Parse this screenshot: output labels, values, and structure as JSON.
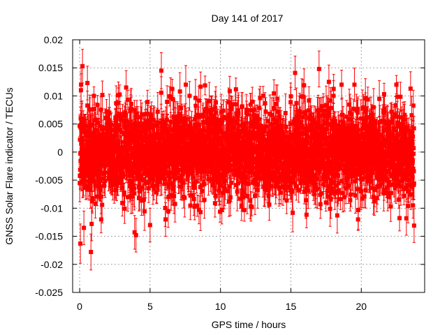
{
  "chart_data": {
    "type": "scatter",
    "title": "Day 141 of 2017",
    "xlabel": "GPS time / hours",
    "ylabel": "GNSS Solar Flare indicator / TECUs",
    "xlim": [
      -0.5,
      24.5
    ],
    "ylim": [
      -0.025,
      0.02
    ],
    "x_ticks": [
      0,
      5,
      10,
      15,
      20
    ],
    "x_tick_labels": [
      "0",
      "5",
      "10",
      "15",
      "20"
    ],
    "y_ticks": [
      -0.025,
      -0.02,
      -0.015,
      -0.01,
      -0.005,
      0,
      0.005,
      0.01,
      0.015,
      0.02
    ],
    "y_tick_labels": [
      "-0.025",
      "-0.02",
      "-0.015",
      "-0.01",
      "-0.005",
      "0",
      "0.005",
      "0.01",
      "0.015",
      "0.02"
    ],
    "grid": true,
    "series_color": "#ff0000",
    "series": [
      {
        "name": "solar flare indicator",
        "marker": "square",
        "error_bars": true,
        "sampling": {
          "x_start": 0,
          "x_end": 23.75,
          "step_hours": 0.0083,
          "typical_abs_value": 0.004,
          "typical_error": 0.0025
        },
        "outliers": [
          {
            "x": 0.05,
            "y": -0.0163,
            "err": 0.0035
          },
          {
            "x": 0.1,
            "y": 0.012,
            "err": 0.003
          },
          {
            "x": 0.2,
            "y": 0.0153,
            "err": 0.003
          },
          {
            "x": 0.3,
            "y": -0.0135,
            "err": 0.003
          },
          {
            "x": 0.55,
            "y": 0.0123,
            "err": 0.003
          },
          {
            "x": 0.8,
            "y": -0.0178,
            "err": 0.0032
          },
          {
            "x": 0.85,
            "y": -0.0128,
            "err": 0.003
          },
          {
            "x": 3.3,
            "y": 0.0115,
            "err": 0.003
          },
          {
            "x": 3.9,
            "y": -0.0143,
            "err": 0.003
          },
          {
            "x": 4.0,
            "y": -0.0148,
            "err": 0.003
          },
          {
            "x": 5.0,
            "y": -0.013,
            "err": 0.003
          },
          {
            "x": 5.8,
            "y": 0.0145,
            "err": 0.0032
          },
          {
            "x": 6.1,
            "y": -0.012,
            "err": 0.003
          },
          {
            "x": 10.1,
            "y": -0.0103,
            "err": 0.0025
          },
          {
            "x": 15.3,
            "y": 0.0141,
            "err": 0.003
          },
          {
            "x": 17.0,
            "y": 0.0148,
            "err": 0.0032
          },
          {
            "x": 17.1,
            "y": -0.0093,
            "err": 0.0025
          },
          {
            "x": 17.7,
            "y": 0.0125,
            "err": 0.003
          },
          {
            "x": 23.2,
            "y": -0.0118,
            "err": 0.003
          },
          {
            "x": 23.5,
            "y": 0.0113,
            "err": 0.003
          },
          {
            "x": 23.75,
            "y": -0.0131,
            "err": 0.003
          }
        ]
      }
    ]
  }
}
